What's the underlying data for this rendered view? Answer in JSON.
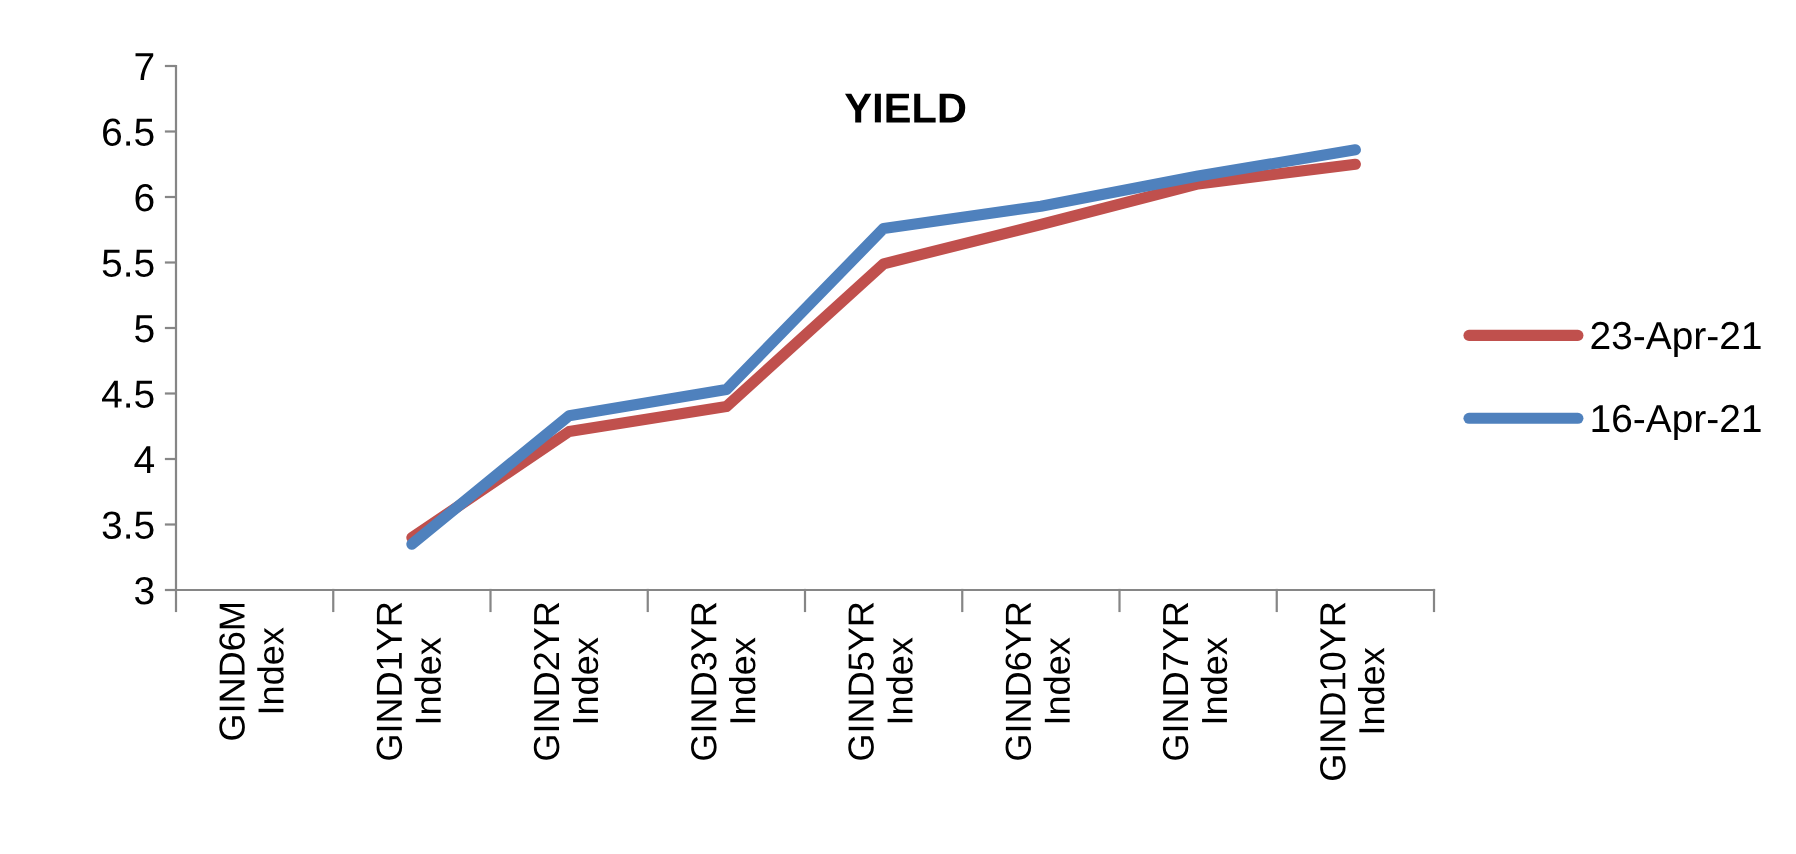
{
  "chart_data": {
    "type": "line",
    "title": "YIELD",
    "categories": [
      "GIND6M\nIndex",
      "GIND1YR\nIndex",
      "GIND2YR\nIndex",
      "GIND3YR\nIndex",
      "GIND5YR\nIndex",
      "GIND6YR\nIndex",
      "GIND7YR\nIndex",
      "GIND10YR\nIndex"
    ],
    "series": [
      {
        "name": "23-Apr-21",
        "color": "#c0504d",
        "values": [
          null,
          3.4,
          4.21,
          4.4,
          5.49,
          5.79,
          6.1,
          6.25
        ]
      },
      {
        "name": "16-Apr-21",
        "color": "#4f81bd",
        "values": [
          null,
          3.35,
          4.33,
          4.53,
          5.76,
          5.93,
          6.16,
          6.36
        ]
      }
    ],
    "ylim": [
      3,
      7
    ],
    "yticks": [
      3,
      3.5,
      4,
      4.5,
      5,
      5.5,
      6,
      6.5,
      7
    ],
    "grid": false,
    "legend": "right",
    "marker": "none",
    "line_style": "solid"
  }
}
